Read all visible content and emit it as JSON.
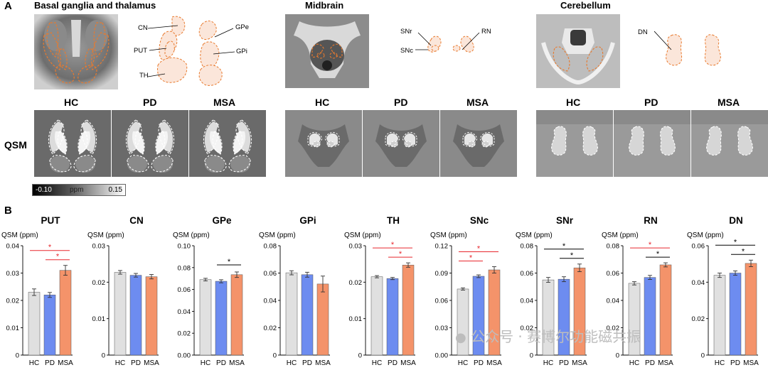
{
  "panel_a": {
    "letter": "A",
    "regions": [
      {
        "title": "Basal ganglia and thalamus",
        "labels": [
          "CN",
          "PUT",
          "TH",
          "GPe",
          "GPi"
        ]
      },
      {
        "title": "Midbrain",
        "labels": [
          "SNr",
          "SNc",
          "RN"
        ]
      },
      {
        "title": "Cerebellum",
        "labels": [
          "DN"
        ]
      }
    ],
    "groups": [
      "HC",
      "PD",
      "MSA"
    ],
    "row_label": "QSM",
    "colorbar": {
      "min": "-0.10",
      "unit": "ppm",
      "max": "0.15"
    }
  },
  "panel_b": {
    "letter": "B"
  },
  "watermark": "公众号 · 赛博尔功能磁共振",
  "colors": {
    "HC": "#e0e0e0",
    "PD": "#6d8cf0",
    "MSA": "#f4936a",
    "sig_red": "#e8282e",
    "sig_black": "#000000",
    "roi_outline": "#e87a2e"
  },
  "chart_data": [
    {
      "type": "bar",
      "title": "PUT",
      "ylabel": "QSM (ppm)",
      "categories": [
        "HC",
        "PD",
        "MSA"
      ],
      "values": [
        0.023,
        0.022,
        0.031
      ],
      "errors": [
        0.0012,
        0.0009,
        0.0018
      ],
      "ylim": [
        0,
        0.04
      ],
      "yticks": [
        "0",
        "0.01",
        "0.02",
        "0.03",
        "0.04"
      ],
      "significance": [
        {
          "from": 0,
          "to": 2,
          "label": "*",
          "color": "red"
        },
        {
          "from": 1,
          "to": 2,
          "label": "*",
          "color": "red"
        }
      ]
    },
    {
      "type": "bar",
      "title": "CN",
      "ylabel": "QSM (ppm)",
      "categories": [
        "HC",
        "PD",
        "MSA"
      ],
      "values": [
        0.0227,
        0.0219,
        0.0215
      ],
      "errors": [
        0.0005,
        0.0005,
        0.0006
      ],
      "ylim": [
        0,
        0.03
      ],
      "yticks": [
        "0",
        "0.01",
        "0.02",
        "0.03"
      ],
      "significance": []
    },
    {
      "type": "bar",
      "title": "GPe",
      "ylabel": "QSM (ppm)",
      "categories": [
        "HC",
        "PD",
        "MSA"
      ],
      "values": [
        0.069,
        0.0675,
        0.0735
      ],
      "errors": [
        0.0012,
        0.0014,
        0.0025
      ],
      "ylim": [
        0,
        0.1
      ],
      "yticks": [
        "0.00",
        "0.02",
        "0.04",
        "0.06",
        "0.08",
        "0.10"
      ],
      "significance": [
        {
          "from": 1,
          "to": 2,
          "label": "*",
          "color": "black"
        }
      ]
    },
    {
      "type": "bar",
      "title": "GPi",
      "ylabel": "QSM (ppm)",
      "categories": [
        "HC",
        "PD",
        "MSA"
      ],
      "values": [
        0.0602,
        0.0588,
        0.052
      ],
      "errors": [
        0.0015,
        0.0018,
        0.0058
      ],
      "ylim": [
        0,
        0.08
      ],
      "yticks": [
        "0",
        "0.02",
        "0.04",
        "0.06",
        "0.08"
      ],
      "significance": []
    },
    {
      "type": "bar",
      "title": "TH",
      "ylabel": "QSM (ppm)",
      "categories": [
        "HC",
        "PD",
        "MSA"
      ],
      "values": [
        0.0215,
        0.021,
        0.0247
      ],
      "errors": [
        0.0003,
        0.0003,
        0.0006
      ],
      "ylim": [
        0,
        0.03
      ],
      "yticks": [
        "0",
        "0.01",
        "0.02",
        "0.03"
      ],
      "significance": [
        {
          "from": 0,
          "to": 2,
          "label": "*",
          "color": "red"
        },
        {
          "from": 1,
          "to": 2,
          "label": "*",
          "color": "red"
        }
      ]
    },
    {
      "type": "bar",
      "title": "SNc",
      "ylabel": "QSM (ppm)",
      "categories": [
        "HC",
        "PD",
        "MSA"
      ],
      "values": [
        0.0725,
        0.0865,
        0.0935
      ],
      "errors": [
        0.0012,
        0.0015,
        0.0035
      ],
      "ylim": [
        0,
        0.12
      ],
      "yticks": [
        "0.00",
        "0.03",
        "0.06",
        "0.09",
        "0.12"
      ],
      "significance": [
        {
          "from": 0,
          "to": 2,
          "label": "*",
          "color": "red"
        },
        {
          "from": 0,
          "to": 1,
          "label": "*",
          "color": "red"
        }
      ]
    },
    {
      "type": "bar",
      "title": "SNr",
      "ylabel": "QSM (ppm)",
      "categories": [
        "HC",
        "PD",
        "MSA"
      ],
      "values": [
        0.055,
        0.0555,
        0.0638
      ],
      "errors": [
        0.0018,
        0.0018,
        0.0028
      ],
      "ylim": [
        0,
        0.08
      ],
      "yticks": [
        "0",
        "0.02",
        "0.04",
        "0.06",
        "0.08"
      ],
      "significance": [
        {
          "from": 0,
          "to": 2,
          "label": "*",
          "color": "black"
        },
        {
          "from": 1,
          "to": 2,
          "label": "*",
          "color": "black"
        }
      ]
    },
    {
      "type": "bar",
      "title": "RN",
      "ylabel": "QSM (ppm)",
      "categories": [
        "HC",
        "PD",
        "MSA"
      ],
      "values": [
        0.0525,
        0.0568,
        0.066
      ],
      "errors": [
        0.0012,
        0.0015,
        0.0015
      ],
      "ylim": [
        0,
        0.08
      ],
      "yticks": [
        "0",
        "0.02",
        "0.04",
        "0.06",
        "0.08"
      ],
      "significance": [
        {
          "from": 0,
          "to": 2,
          "label": "*",
          "color": "red"
        },
        {
          "from": 1,
          "to": 2,
          "label": "*",
          "color": "black"
        }
      ]
    },
    {
      "type": "bar",
      "title": "DN",
      "ylabel": "QSM (ppm)",
      "categories": [
        "HC",
        "PD",
        "MSA"
      ],
      "values": [
        0.0438,
        0.045,
        0.0503
      ],
      "errors": [
        0.0012,
        0.0012,
        0.0018
      ],
      "ylim": [
        0,
        0.06
      ],
      "yticks": [
        "0",
        "0.02",
        "0.04",
        "0.06"
      ],
      "significance": [
        {
          "from": 0,
          "to": 2,
          "label": "*",
          "color": "black"
        },
        {
          "from": 1,
          "to": 2,
          "label": "*",
          "color": "black"
        }
      ]
    }
  ]
}
